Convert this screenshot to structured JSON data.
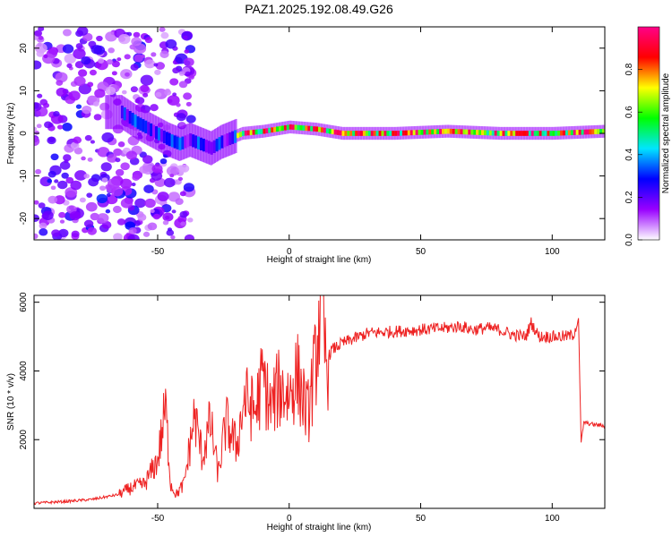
{
  "figure_title": "PAZ1.2025.192.08.49.G26",
  "chart_data": [
    {
      "type": "heatmap",
      "xlabel": "Height of straight line (km)",
      "ylabel": "Frequency (Hz)",
      "xlim": [
        -97,
        120
      ],
      "ylim": [
        -25,
        25
      ],
      "x_ticks": [
        -50,
        0,
        50,
        100
      ],
      "y_ticks": [
        -20,
        -10,
        0,
        10,
        20
      ],
      "colorbar": {
        "label": "Normalized spectral amplitude",
        "range": [
          0.0,
          1.0
        ],
        "ticks": [
          0.0,
          0.2,
          0.4,
          0.6,
          0.8
        ],
        "tick_labels": [
          "0.0",
          "0.2",
          "0.4",
          "0.6",
          "0.8"
        ],
        "colors": [
          "#ffffff",
          "#9900ff",
          "#0000ff",
          "#00e5ff",
          "#00ff00",
          "#ffff00",
          "#ff0000",
          "#ff0088"
        ]
      },
      "ridge": {
        "x": [
          -64,
          -58,
          -52,
          -46,
          -42,
          -38,
          -34,
          -30,
          -26,
          -22,
          -18,
          -10,
          0,
          10,
          20,
          40,
          60,
          80,
          100,
          120
        ],
        "frequency": [
          5,
          2.5,
          0.5,
          -1.5,
          -2.5,
          -1.5,
          -2.5,
          -3.5,
          -2,
          -1,
          0,
          0.5,
          1.5,
          1,
          0,
          0,
          0.5,
          0,
          0,
          0.5
        ]
      },
      "grid": false
    },
    {
      "type": "line",
      "xlabel": "Height of straight line (km)",
      "ylabel": "SNR (10 * v/v)",
      "xlim": [
        -97,
        120
      ],
      "ylim": [
        0,
        6200
      ],
      "x_ticks": [
        -50,
        0,
        50,
        100
      ],
      "y_ticks": [
        2000,
        4000,
        6000
      ],
      "line_color": "#ee2222",
      "x": [
        -97,
        -85,
        -75,
        -65,
        -60,
        -55,
        -50,
        -47,
        -45,
        -43,
        -40,
        -36,
        -33,
        -30,
        -27,
        -24,
        -20,
        -17,
        -13,
        -10,
        -7,
        -4,
        0,
        3,
        7,
        10,
        12,
        14,
        16,
        18,
        20,
        25,
        30,
        40,
        50,
        60,
        65,
        70,
        75,
        80,
        85,
        90,
        92,
        95,
        100,
        105,
        108,
        110,
        111,
        112,
        115,
        120
      ],
      "y": [
        150,
        200,
        260,
        400,
        600,
        700,
        1400,
        2900,
        700,
        400,
        700,
        2700,
        1500,
        2500,
        1000,
        2500,
        1800,
        3200,
        2800,
        3800,
        2900,
        3500,
        3300,
        3900,
        2700,
        4200,
        6100,
        4200,
        4600,
        4700,
        4800,
        4950,
        5100,
        5150,
        5200,
        5250,
        5300,
        5200,
        5250,
        5200,
        5050,
        5000,
        5400,
        5000,
        5000,
        5000,
        5050,
        5500,
        1900,
        2500,
        2450,
        2400
      ],
      "grid": false
    }
  ]
}
